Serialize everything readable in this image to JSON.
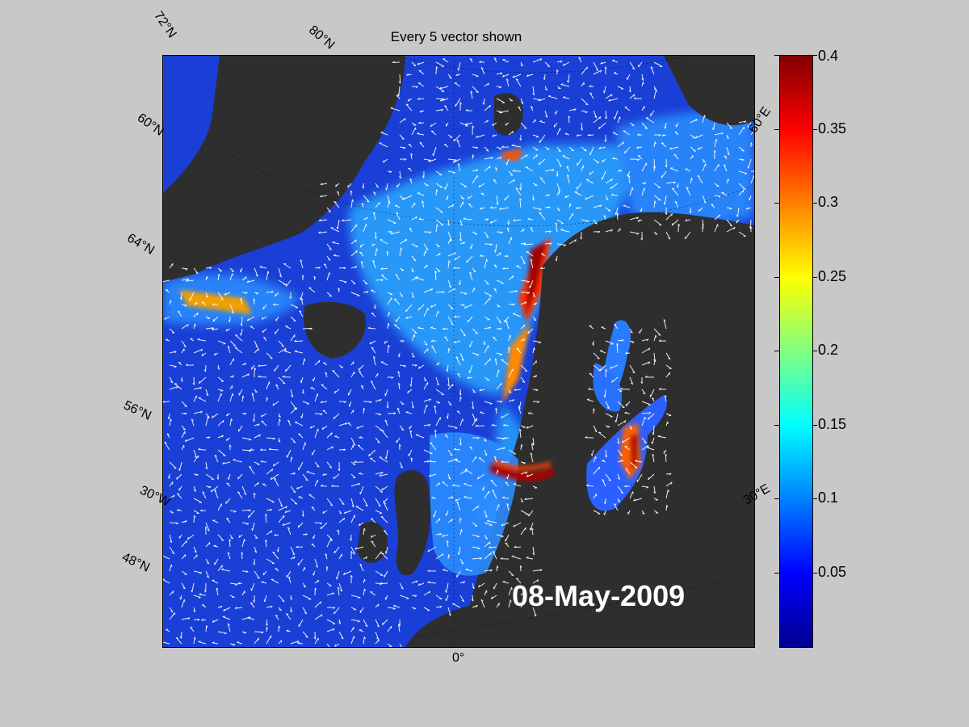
{
  "title": "Every 5 vector shown",
  "date": "08-May-2009",
  "lat_labels": [
    "72°N",
    "60°N",
    "64°N",
    "56°N",
    "30°W",
    "48°N"
  ],
  "top_labels": [
    "80°N"
  ],
  "right_labels": [
    "60°E",
    "30°E"
  ],
  "bottom_labels": [
    "0°"
  ],
  "colorbar": {
    "min": 0,
    "max": 0.4,
    "ticks": [
      "0.4",
      "0.35",
      "0.3",
      "0.25",
      "0.2",
      "0.15",
      "0.1",
      "0.05"
    ],
    "colormap": "jet"
  },
  "colors": {
    "land": "#2e2e2e",
    "ocean_low": "#1a3fd6",
    "background": "#c8c8c8",
    "vectors": "#ffffff"
  }
}
